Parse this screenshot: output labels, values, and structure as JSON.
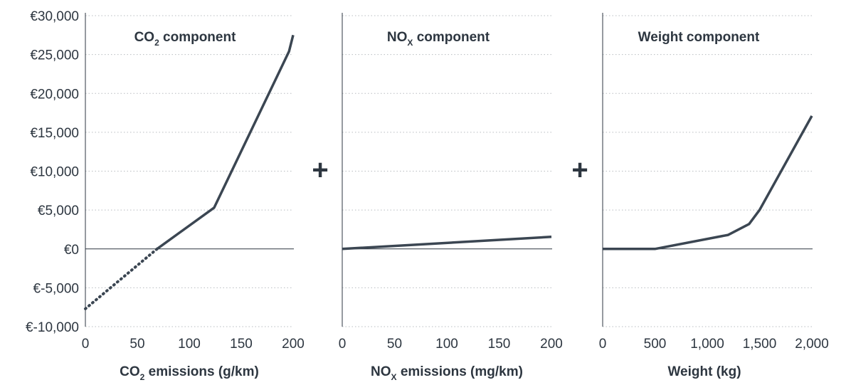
{
  "colors": {
    "line": "#3b4652",
    "text": "#2d3640",
    "grid": "#b8bcc0",
    "axis": "#2d3640"
  },
  "operator": "+",
  "chart_data": [
    {
      "type": "line",
      "title": "CO₂ component",
      "xlabel": "CO₂ emissions (g/km)",
      "ylabel": "",
      "xlim": [
        0,
        200
      ],
      "ylim": [
        -10000,
        30000
      ],
      "x_ticks": [
        "0",
        "50",
        "100",
        "150",
        "200"
      ],
      "y_ticks": [
        "€30,000",
        "€25,000",
        "€20,000",
        "€15,000",
        "€10,000",
        "€5,000",
        "€0",
        "€-5,000",
        "€-10,000"
      ],
      "grid": "horizontal dotted",
      "series": [
        {
          "style": "dotted",
          "x": [
            0,
            69
          ],
          "y": [
            -7700,
            0
          ]
        },
        {
          "style": "solid",
          "x": [
            69,
            124,
            196,
            200
          ],
          "y": [
            0,
            5300,
            25400,
            27500
          ]
        }
      ]
    },
    {
      "type": "line",
      "title": "NOₓ component",
      "xlabel": "NOₓ emissions (mg/km)",
      "ylabel": "",
      "xlim": [
        0,
        200
      ],
      "ylim": [
        -10000,
        30000
      ],
      "x_ticks": [
        "0",
        "50",
        "100",
        "150",
        "200"
      ],
      "grid": "horizontal dotted",
      "series": [
        {
          "style": "solid",
          "x": [
            0,
            200
          ],
          "y": [
            0,
            1550
          ]
        }
      ]
    },
    {
      "type": "line",
      "title": "Weight component",
      "xlabel": "Weight (kg)",
      "ylabel": "",
      "xlim": [
        0,
        2000
      ],
      "ylim": [
        -10000,
        30000
      ],
      "x_ticks": [
        "0",
        "500",
        "1,000",
        "1,500",
        "2,000"
      ],
      "grid": "horizontal dotted",
      "series": [
        {
          "style": "solid",
          "x": [
            0,
            500,
            1200,
            1400,
            1500,
            2000
          ],
          "y": [
            0,
            0,
            1800,
            3200,
            5000,
            17100
          ]
        }
      ]
    }
  ]
}
